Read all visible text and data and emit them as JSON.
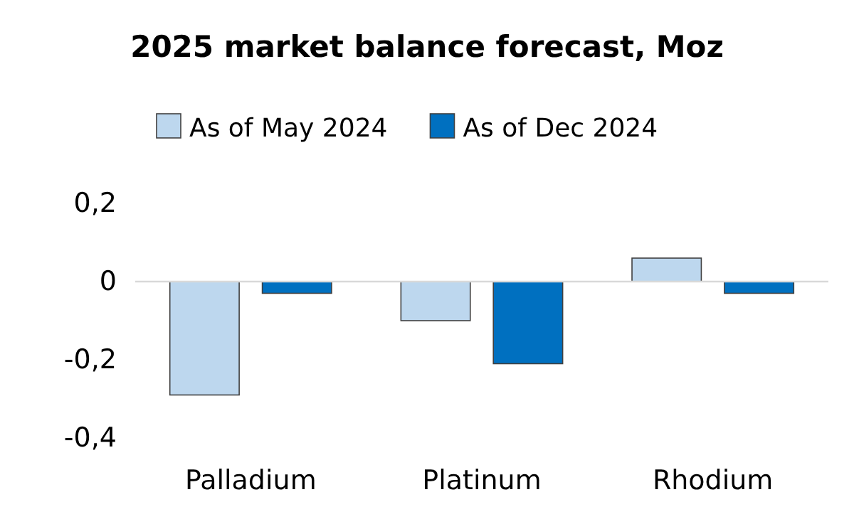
{
  "chart_data": {
    "type": "bar",
    "title": "2025 market balance forecast, Moz",
    "categories": [
      "Palladium",
      "Platinum",
      "Rhodium"
    ],
    "series": [
      {
        "name": "As of May 2024",
        "color": "#bdd7ee",
        "values": [
          -0.29,
          -0.1,
          0.06
        ]
      },
      {
        "name": "As of Dec 2024",
        "color": "#0070c0",
        "values": [
          -0.03,
          -0.21,
          -0.03
        ]
      }
    ],
    "ylim": [
      -0.4,
      0.2
    ],
    "yticks": [
      {
        "value": 0.2,
        "label": "0,2"
      },
      0,
      {
        "value": -0.2,
        "label": "-0,2"
      },
      {
        "value": -0.4,
        "label": "-0,4"
      }
    ],
    "legend": "top"
  }
}
